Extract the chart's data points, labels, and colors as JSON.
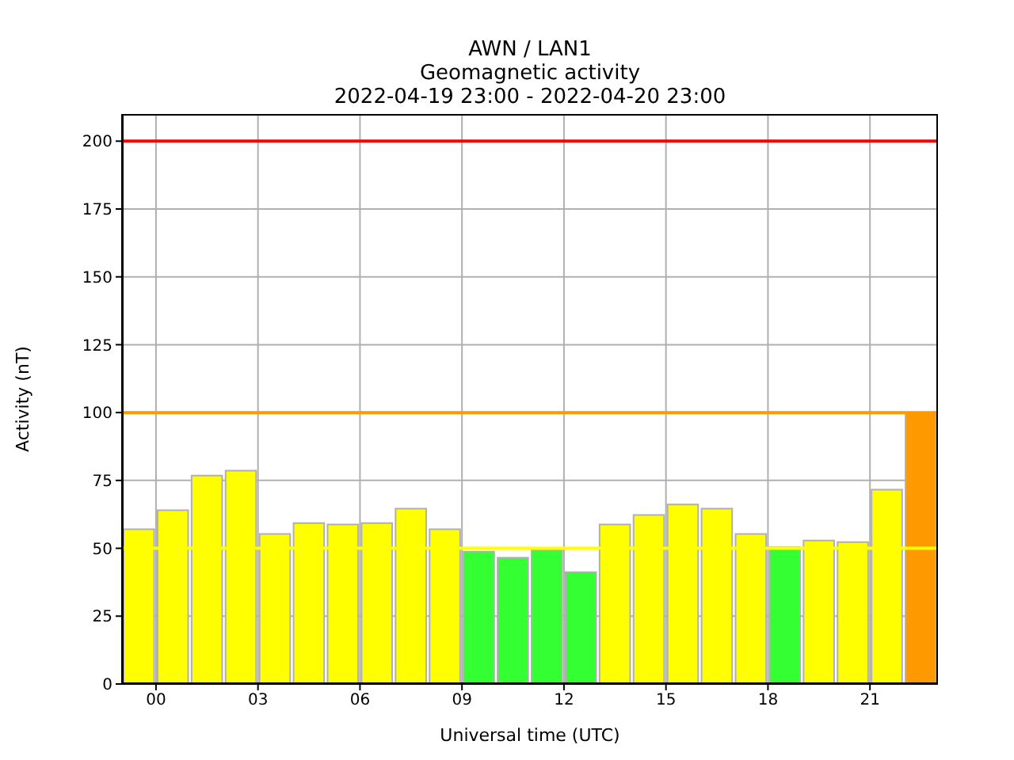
{
  "chart_data": {
    "type": "bar",
    "title": "AWN / LAN1",
    "subtitle": "Geomagnetic activity",
    "annotations": [
      "2022-04-19 23:00 - 2022-04-20 23:00"
    ],
    "xlabel": "Universal time (UTC)",
    "ylabel": "Activity (nT)",
    "x": [
      -0.5,
      0.5,
      1.5,
      2.5,
      3.5,
      4.5,
      5.5,
      6.5,
      7.5,
      8.5,
      9.5,
      10.5,
      11.5,
      12.5,
      13.5,
      14.5,
      15.5,
      16.5,
      17.5,
      18.5,
      19.5,
      20.5,
      21.5,
      22.5
    ],
    "values": [
      57.0,
      64.0,
      76.8,
      78.6,
      55.3,
      59.3,
      58.8,
      59.3,
      64.6,
      57.0,
      48.8,
      46.5,
      49.4,
      41.2,
      58.8,
      62.3,
      66.1,
      64.6,
      55.3,
      50.4,
      52.9,
      52.3,
      71.6,
      100
    ],
    "colors": [
      "#ffff00",
      "#ffff00",
      "#ffff00",
      "#ffff00",
      "#ffff00",
      "#ffff00",
      "#ffff00",
      "#ffff00",
      "#ffff00",
      "#ffff00",
      "#33ff33",
      "#33ff33",
      "#33ff33",
      "#33ff33",
      "#ffff00",
      "#ffff00",
      "#ffff00",
      "#ffff00",
      "#ffff00",
      "#33ff33",
      "#ffff00",
      "#ffff00",
      "#ffff00",
      "#ff9900"
    ],
    "xlim": [
      -1,
      23
    ],
    "xticks": [
      {
        "value": 0,
        "label": "00"
      },
      {
        "value": 3,
        "label": "03"
      },
      {
        "value": 6,
        "label": "06"
      },
      {
        "value": 9,
        "label": "09"
      },
      {
        "value": 12,
        "label": "12"
      },
      {
        "value": 15,
        "label": "15"
      },
      {
        "value": 18,
        "label": "18"
      },
      {
        "value": 21,
        "label": "21"
      }
    ],
    "ylim": [
      0,
      210
    ],
    "yticks": [
      0,
      25,
      50,
      75,
      100,
      125,
      150,
      175,
      200
    ],
    "ref_lines": [
      {
        "axis": "y",
        "value": 200,
        "color": "#ff0000"
      },
      {
        "axis": "y",
        "value": 100,
        "color": "#ff9900"
      },
      {
        "axis": "y",
        "value": 50,
        "color": "#ffff00"
      }
    ],
    "grid": true
  }
}
